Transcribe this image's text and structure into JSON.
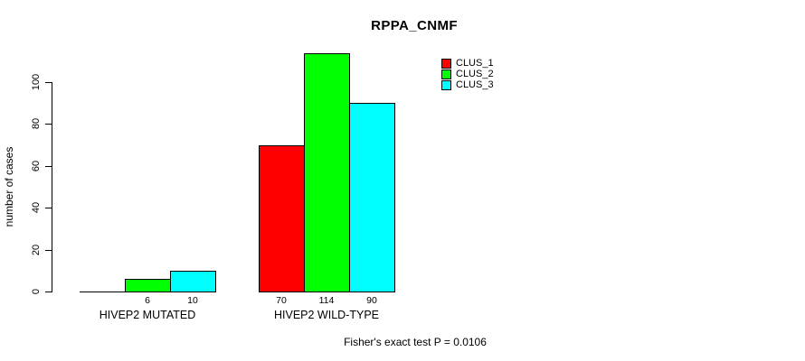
{
  "chart_data": {
    "type": "bar",
    "title": "RPPA_CNMF",
    "ylabel": "number of cases",
    "xlabel": "",
    "categories": [
      "HIVEP2 MUTATED",
      "HIVEP2 WILD-TYPE"
    ],
    "series": [
      {
        "name": "CLUS_1",
        "color": "#ff0000",
        "values": [
          0,
          70
        ]
      },
      {
        "name": "CLUS_2",
        "color": "#00ff00",
        "values": [
          6,
          114
        ]
      },
      {
        "name": "CLUS_3",
        "color": "#00ffff",
        "values": [
          10,
          90
        ]
      }
    ],
    "yticks": [
      0,
      20,
      40,
      60,
      80,
      100
    ],
    "ylim": [
      0,
      100
    ],
    "grid": false,
    "legend_position": "top-right",
    "show_value_labels": true,
    "hide_zero_value_labels": true,
    "annotation": "Fisher's exact test P = 0.0106"
  }
}
